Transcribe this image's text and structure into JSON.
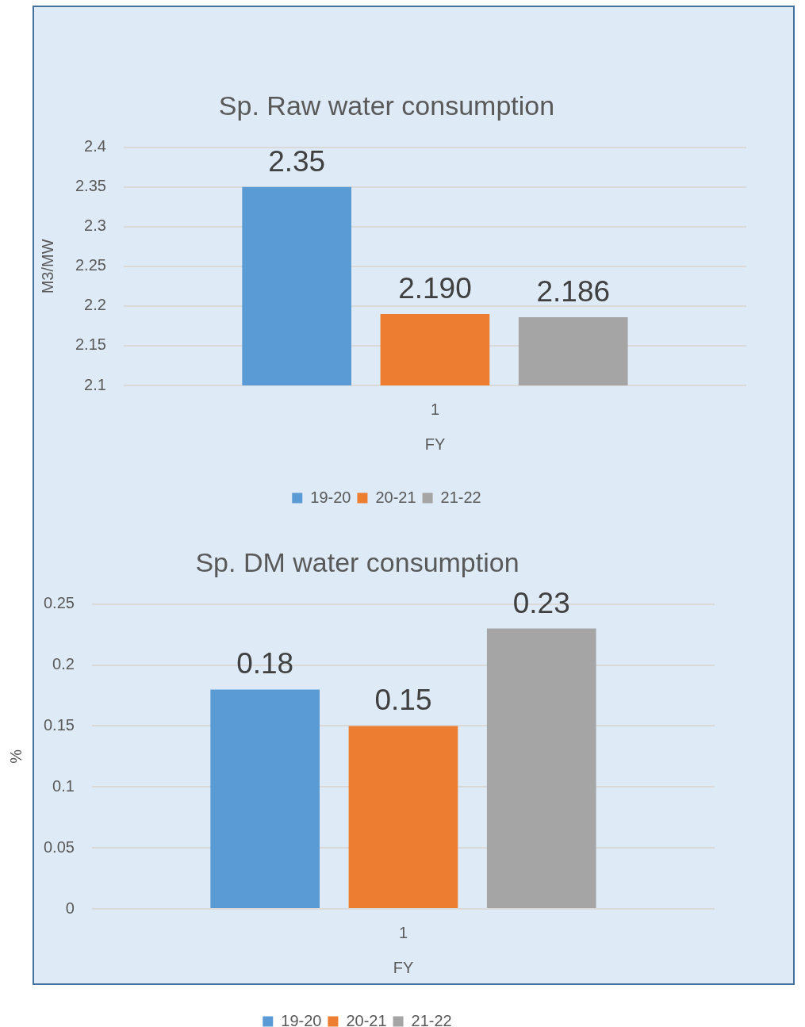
{
  "chart_data": [
    {
      "type": "bar",
      "title": "Sp. Raw water consumption",
      "xlabel": "FY",
      "ylabel": "M3/MW",
      "categories": [
        "1"
      ],
      "series": [
        {
          "name": "19-20",
          "color": "#5b9bd5",
          "values": [
            2.35
          ],
          "value_labels": [
            "2.35"
          ]
        },
        {
          "name": "20-21",
          "color": "#ed7d31",
          "values": [
            2.19
          ],
          "value_labels": [
            "2.190"
          ]
        },
        {
          "name": "21-22",
          "color": "#a5a5a5",
          "values": [
            2.186
          ],
          "value_labels": [
            "2.186"
          ]
        }
      ],
      "ylim": [
        2.1,
        2.4
      ],
      "yticks": [
        2.1,
        2.15,
        2.2,
        2.25,
        2.3,
        2.35,
        2.4
      ],
      "grid": "y",
      "legend": "bottom"
    },
    {
      "type": "bar",
      "title": "Sp. DM water consumption",
      "xlabel": "FY",
      "ylabel": "%",
      "categories": [
        "1"
      ],
      "series": [
        {
          "name": "19-20",
          "color": "#5b9bd5",
          "values": [
            0.18
          ]
        },
        {
          "name": "20-21",
          "color": "#ed7d31",
          "values": [
            0.15
          ]
        },
        {
          "name": "21-22",
          "color": "#a5a5a5",
          "values": [
            0.23
          ]
        }
      ],
      "ylim": [
        0,
        0.25
      ],
      "yticks": [
        0,
        0.05,
        0.1,
        0.15,
        0.2,
        0.25
      ],
      "grid": "y",
      "legend": "bottom",
      "data_labels": true
    }
  ]
}
